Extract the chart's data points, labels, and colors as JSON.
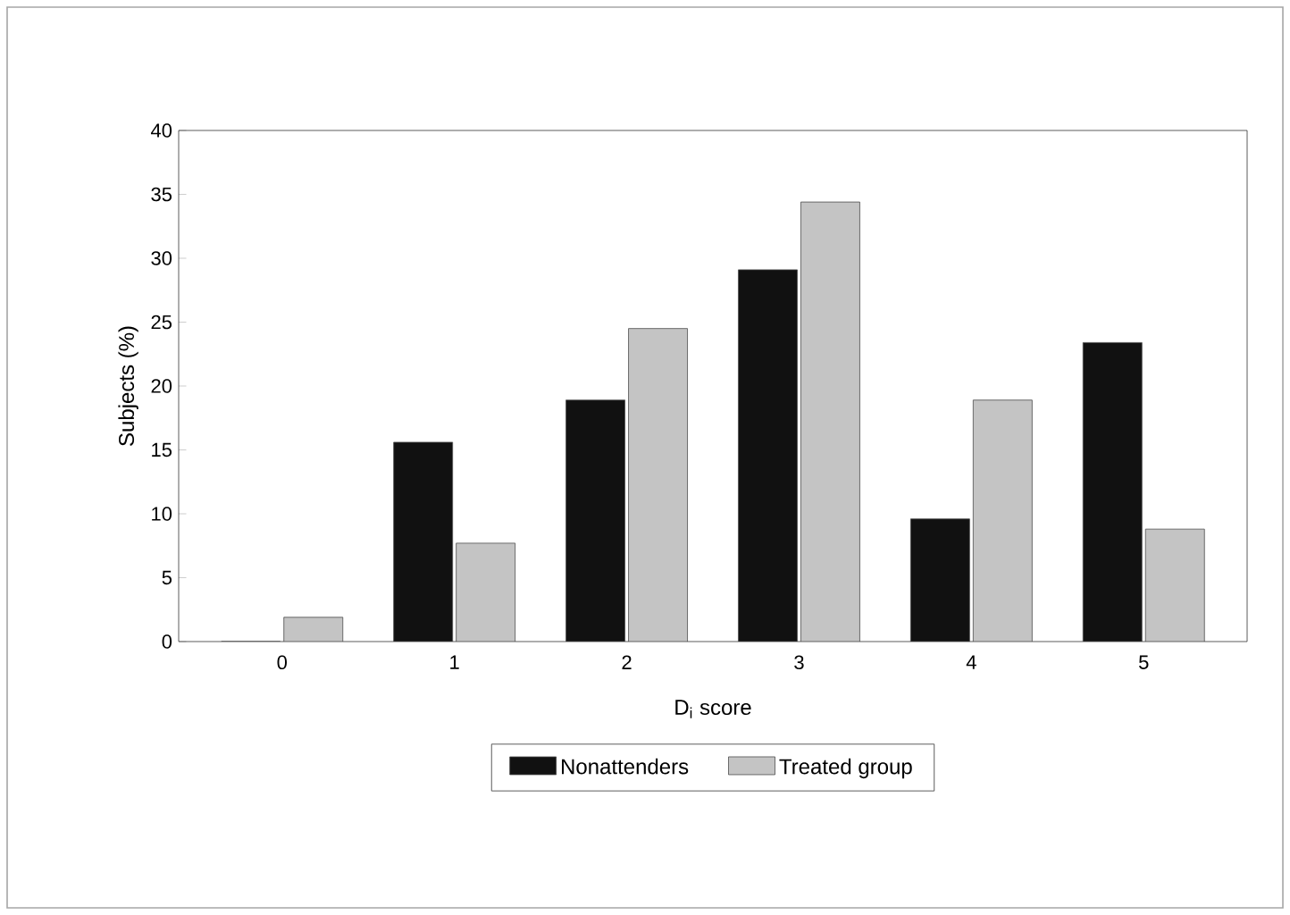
{
  "chart_data": {
    "type": "bar",
    "xlabel": "D$_{i}$ score",
    "ylabel": "Subjects (%)",
    "categories": [
      "0",
      "1",
      "2",
      "3",
      "4",
      "5"
    ],
    "series": [
      {
        "name": "Nonattenders",
        "color": "#111111",
        "values": [
          0,
          15.6,
          18.9,
          29.1,
          9.6,
          23.4
        ]
      },
      {
        "name": "Treated group",
        "color": "#c4c4c4",
        "values": [
          1.9,
          7.7,
          24.5,
          34.4,
          18.9,
          8.8
        ]
      }
    ],
    "ylim": [
      0,
      40
    ],
    "yticks": [
      0,
      5,
      10,
      15,
      20,
      25,
      30,
      35,
      40
    ],
    "legend": "bottom",
    "grid": false
  }
}
